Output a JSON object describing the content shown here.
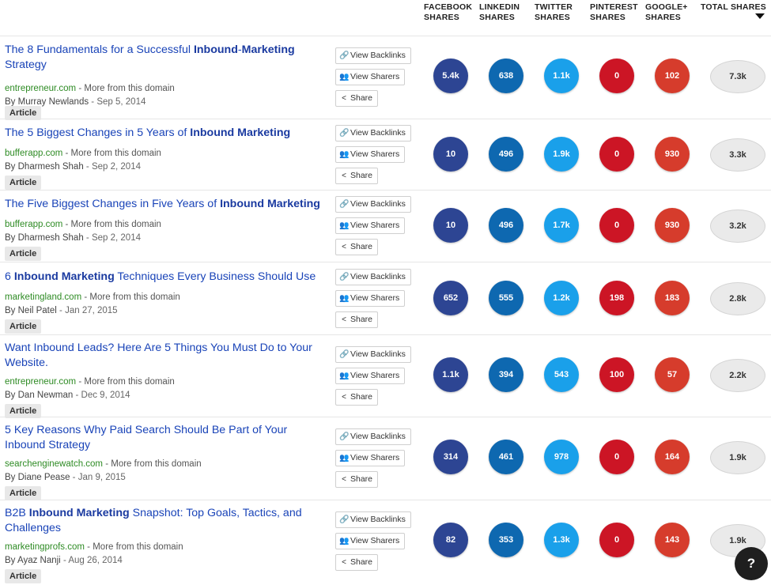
{
  "header": {
    "columns": [
      {
        "key": "facebook",
        "line1": "FACEBOOK",
        "line2": "SHARES"
      },
      {
        "key": "linkedin",
        "line1": "LINKEDIN",
        "line2": "SHARES"
      },
      {
        "key": "twitter",
        "line1": "TWITTER",
        "line2": "SHARES"
      },
      {
        "key": "pinterest",
        "line1": "PINTEREST",
        "line2": "SHARES"
      },
      {
        "key": "googleplus",
        "line1": "GOOGLE+",
        "line2": "SHARES"
      },
      {
        "key": "total",
        "line1": "TOTAL SHARES",
        "line2": ""
      }
    ],
    "sort_icon": "caret-down-icon"
  },
  "colors": {
    "facebook": "#2d4593",
    "linkedin": "#0e68b0",
    "twitter": "#1aa0ea",
    "pinterest": "#cc1525",
    "googleplus": "#d63c2c",
    "title_link": "#1a44b8",
    "domain": "#2e8b24"
  },
  "buttons": {
    "backlinks": "View Backlinks",
    "sharers": "View Sharers",
    "share": "Share",
    "more_from_domain": "More from this domain",
    "backlinks_icon": "link-icon",
    "sharers_icon": "users-icon",
    "share_icon": "share-icon"
  },
  "rows": [
    {
      "title_parts": [
        {
          "text": "The 8 Fundamentals for a Successful ",
          "bold": false
        },
        {
          "text": "Inbound",
          "bold": true
        },
        {
          "text": "-",
          "bold": false
        },
        {
          "text": "Marketing",
          "bold": true
        },
        {
          "text": " Strategy",
          "bold": false
        }
      ],
      "domain": "entrepreneur.com",
      "author": "By Murray Newlands",
      "date": "Sep 5, 2014",
      "tag": "Article",
      "facebook": "5.4k",
      "linkedin": "638",
      "twitter": "1.1k",
      "pinterest": "0",
      "googleplus": "102",
      "total": "7.3k"
    },
    {
      "title_parts": [
        {
          "text": "The 5 Biggest Changes in 5 Years of ",
          "bold": false
        },
        {
          "text": "Inbound Marketing",
          "bold": true
        }
      ],
      "domain": "bufferapp.com",
      "author": "By Dharmesh Shah",
      "date": "Sep 2, 2014",
      "tag": "Article",
      "facebook": "10",
      "linkedin": "496",
      "twitter": "1.9k",
      "pinterest": "0",
      "googleplus": "930",
      "total": "3.3k"
    },
    {
      "title_parts": [
        {
          "text": "The Five Biggest Changes in Five Years of ",
          "bold": false
        },
        {
          "text": "Inbound Marketing",
          "bold": true
        }
      ],
      "domain": "bufferapp.com",
      "author": "By Dharmesh Shah",
      "date": "Sep 2, 2014",
      "tag": "Article",
      "facebook": "10",
      "linkedin": "496",
      "twitter": "1.7k",
      "pinterest": "0",
      "googleplus": "930",
      "total": "3.2k"
    },
    {
      "title_parts": [
        {
          "text": "6 ",
          "bold": false
        },
        {
          "text": "Inbound Marketing",
          "bold": true
        },
        {
          "text": " Techniques Every Business Should Use",
          "bold": false
        }
      ],
      "domain": "marketingland.com",
      "author": "By Neil Patel",
      "date": "Jan 27, 2015",
      "tag": "Article",
      "facebook": "652",
      "linkedin": "555",
      "twitter": "1.2k",
      "pinterest": "198",
      "googleplus": "183",
      "total": "2.8k"
    },
    {
      "title_parts": [
        {
          "text": "Want Inbound Leads? Here Are 5 Things You Must Do to Your Website.",
          "bold": false
        }
      ],
      "domain": "entrepreneur.com",
      "author": "By Dan Newman",
      "date": "Dec 9, 2014",
      "tag": "Article",
      "facebook": "1.1k",
      "linkedin": "394",
      "twitter": "543",
      "pinterest": "100",
      "googleplus": "57",
      "total": "2.2k"
    },
    {
      "title_parts": [
        {
          "text": "5 Key Reasons Why Paid Search Should Be Part of Your Inbound Strategy",
          "bold": false
        }
      ],
      "domain": "searchenginewatch.com",
      "author": "By Diane Pease",
      "date": "Jan 9, 2015",
      "tag": "Article",
      "facebook": "314",
      "linkedin": "461",
      "twitter": "978",
      "pinterest": "0",
      "googleplus": "164",
      "total": "1.9k"
    },
    {
      "title_parts": [
        {
          "text": "B2B ",
          "bold": false
        },
        {
          "text": "Inbound Marketing",
          "bold": true
        },
        {
          "text": " Snapshot: Top Goals, Tactics, and Challenges",
          "bold": false
        }
      ],
      "domain": "marketingprofs.com",
      "author": "By Ayaz Nanji",
      "date": "Aug 26, 2014",
      "tag": "Article",
      "facebook": "82",
      "linkedin": "353",
      "twitter": "1.3k",
      "pinterest": "0",
      "googleplus": "143",
      "total": "1.9k"
    }
  ],
  "chat_widget": {
    "icon": "chat-question-icon",
    "glyph": "?"
  }
}
